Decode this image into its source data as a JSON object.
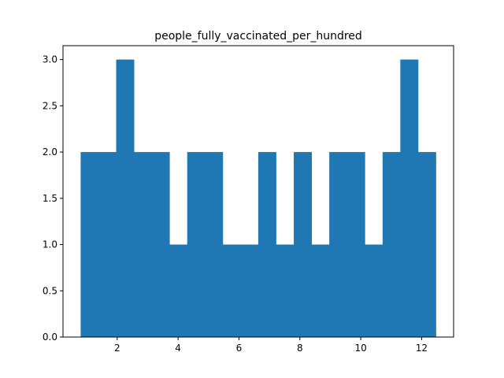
{
  "chart_data": {
    "type": "bar",
    "title": "people_fully_vaccinated_per_hundred",
    "xlabel": "",
    "ylabel": "",
    "bin_edges": [
      0.8,
      1.3833,
      1.9667,
      2.55,
      3.1333,
      3.7167,
      4.3,
      4.8833,
      5.4667,
      6.05,
      6.6333,
      7.2167,
      7.8,
      8.3833,
      8.9667,
      9.55,
      10.1333,
      10.7167,
      11.3,
      11.8833,
      12.4667
    ],
    "values": [
      2,
      2,
      3,
      2,
      2,
      1,
      2,
      2,
      1,
      1,
      2,
      1,
      2,
      1,
      2,
      2,
      1,
      2,
      3,
      2
    ],
    "xlim": [
      0.22,
      13.05
    ],
    "ylim": [
      0,
      3.15
    ],
    "xticks": [
      2,
      4,
      6,
      8,
      10,
      12
    ],
    "xtick_labels": [
      "2",
      "4",
      "6",
      "8",
      "10",
      "12"
    ],
    "yticks": [
      0.0,
      0.5,
      1.0,
      1.5,
      2.0,
      2.5,
      3.0
    ],
    "ytick_labels": [
      "0.0",
      "0.5",
      "1.0",
      "1.5",
      "2.0",
      "2.5",
      "3.0"
    ],
    "bar_color": "#1f77b4",
    "grid": false,
    "legend": "none"
  }
}
